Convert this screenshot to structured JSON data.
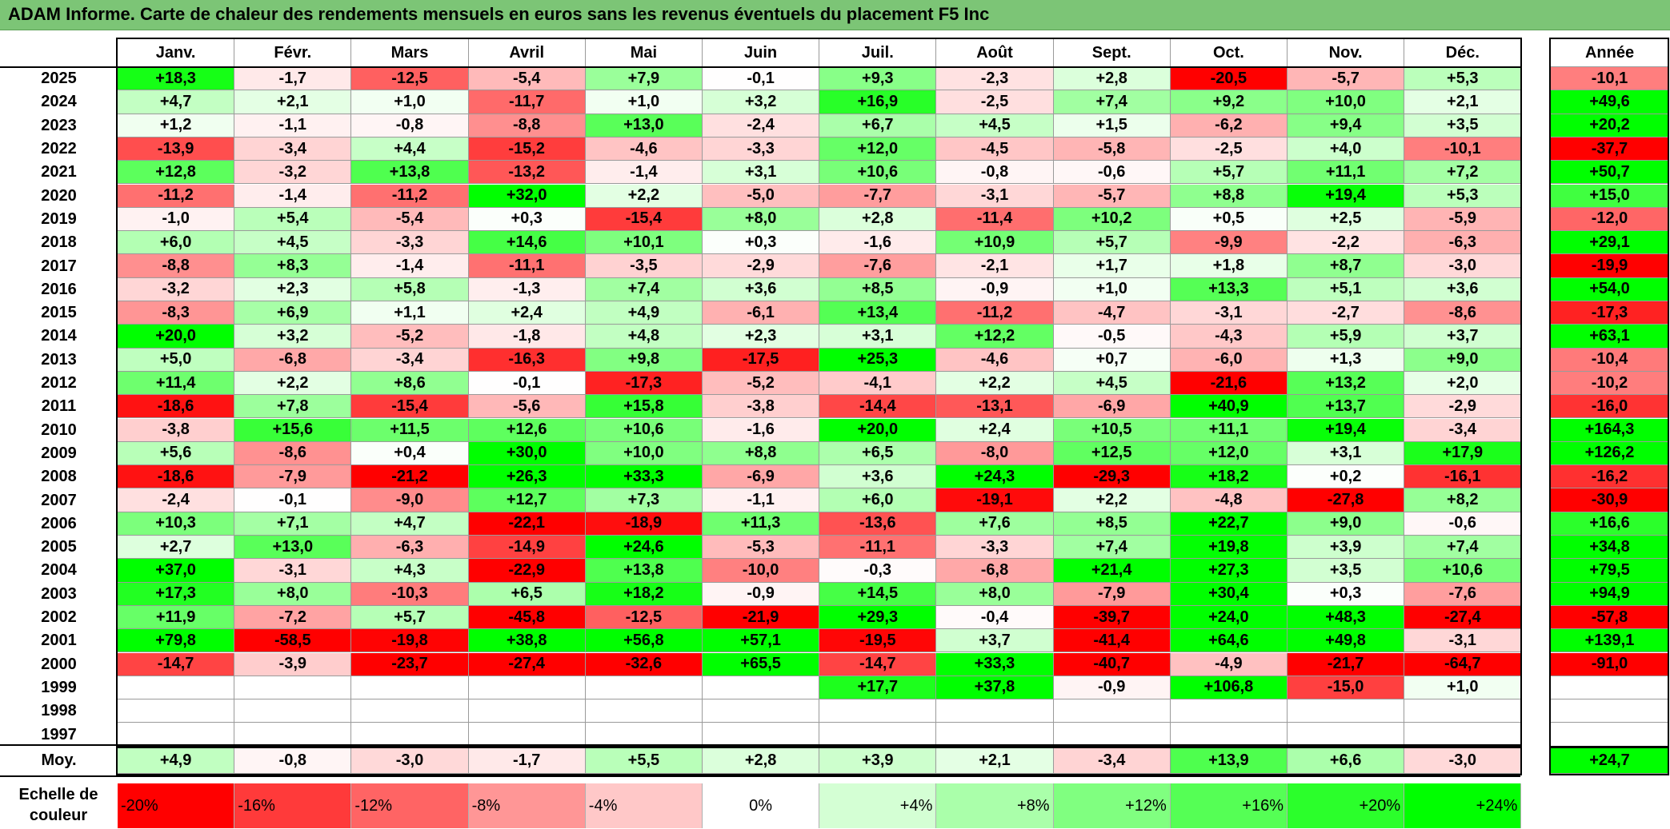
{
  "title": "ADAM Informe. Carte de chaleur des rendements mensuels en euros sans les revenus éventuels du placement F5 Inc",
  "chart_data": {
    "type": "heatmap",
    "columns": [
      "Janv.",
      "Févr.",
      "Mars",
      "Avril",
      "Mai",
      "Juin",
      "Juil.",
      "Août",
      "Sept.",
      "Oct.",
      "Nov.",
      "Déc."
    ],
    "annual_header": "Année",
    "rows": [
      {
        "year": "2025",
        "values": [
          "+18,3",
          "-1,7",
          "-12,5",
          "-5,4",
          "+7,9",
          "-0,1",
          "+9,3",
          "-2,3",
          "+2,8",
          "-20,5",
          "-5,7",
          "+5,3"
        ],
        "annual": "-10,1"
      },
      {
        "year": "2024",
        "values": [
          "+4,7",
          "+2,1",
          "+1,0",
          "-11,7",
          "+1,0",
          "+3,2",
          "+16,9",
          "-2,5",
          "+7,4",
          "+9,2",
          "+10,0",
          "+2,1"
        ],
        "annual": "+49,6"
      },
      {
        "year": "2023",
        "values": [
          "+1,2",
          "-1,1",
          "-0,8",
          "-8,8",
          "+13,0",
          "-2,4",
          "+6,7",
          "+4,5",
          "+1,5",
          "-6,2",
          "+9,4",
          "+3,5"
        ],
        "annual": "+20,2"
      },
      {
        "year": "2022",
        "values": [
          "-13,9",
          "-3,4",
          "+4,4",
          "-15,2",
          "-4,6",
          "-3,3",
          "+12,0",
          "-4,5",
          "-5,8",
          "-2,5",
          "+4,0",
          "-10,1"
        ],
        "annual": "-37,7"
      },
      {
        "year": "2021",
        "values": [
          "+12,8",
          "-3,2",
          "+13,8",
          "-13,2",
          "-1,4",
          "+3,1",
          "+10,6",
          "-0,8",
          "-0,6",
          "+5,7",
          "+11,1",
          "+7,2"
        ],
        "annual": "+50,7"
      },
      {
        "year": "2020",
        "values": [
          "-11,2",
          "-1,4",
          "-11,2",
          "+32,0",
          "+2,2",
          "-5,0",
          "-7,7",
          "-3,1",
          "-5,7",
          "+8,8",
          "+19,4",
          "+5,3"
        ],
        "annual": "+15,0"
      },
      {
        "year": "2019",
        "values": [
          "-1,0",
          "+5,4",
          "-5,4",
          "+0,3",
          "-15,4",
          "+8,0",
          "+2,8",
          "-11,4",
          "+10,2",
          "+0,5",
          "+2,5",
          "-5,9"
        ],
        "annual": "-12,0"
      },
      {
        "year": "2018",
        "values": [
          "+6,0",
          "+4,5",
          "-3,3",
          "+14,6",
          "+10,1",
          "+0,3",
          "-1,6",
          "+10,9",
          "+5,7",
          "-9,9",
          "-2,2",
          "-6,3"
        ],
        "annual": "+29,1"
      },
      {
        "year": "2017",
        "values": [
          "-8,8",
          "+8,3",
          "-1,4",
          "-11,1",
          "-3,5",
          "-2,9",
          "-7,6",
          "-2,1",
          "+1,7",
          "+1,8",
          "+8,7",
          "-3,0"
        ],
        "annual": "-19,9"
      },
      {
        "year": "2016",
        "values": [
          "-3,2",
          "+2,3",
          "+5,8",
          "-1,3",
          "+7,4",
          "+3,6",
          "+8,5",
          "-0,9",
          "+1,0",
          "+13,3",
          "+5,1",
          "+3,6"
        ],
        "annual": "+54,0"
      },
      {
        "year": "2015",
        "values": [
          "-8,3",
          "+6,9",
          "+1,1",
          "+2,4",
          "+4,9",
          "-6,1",
          "+13,4",
          "-11,2",
          "-4,7",
          "-3,1",
          "-2,7",
          "-8,6"
        ],
        "annual": "-17,3"
      },
      {
        "year": "2014",
        "values": [
          "+20,0",
          "+3,2",
          "-5,2",
          "-1,8",
          "+4,8",
          "+2,3",
          "+3,1",
          "+12,2",
          "-0,5",
          "-4,3",
          "+5,9",
          "+3,7"
        ],
        "annual": "+63,1"
      },
      {
        "year": "2013",
        "values": [
          "+5,0",
          "-6,8",
          "-3,4",
          "-16,3",
          "+9,8",
          "-17,5",
          "+25,3",
          "-4,6",
          "+0,7",
          "-6,0",
          "+1,3",
          "+9,0"
        ],
        "annual": "-10,4"
      },
      {
        "year": "2012",
        "values": [
          "+11,4",
          "+2,2",
          "+8,6",
          "-0,1",
          "-17,3",
          "-5,2",
          "-4,1",
          "+2,2",
          "+4,5",
          "-21,6",
          "+13,2",
          "+2,0"
        ],
        "annual": "-10,2"
      },
      {
        "year": "2011",
        "values": [
          "-18,6",
          "+7,8",
          "-15,4",
          "-5,6",
          "+15,8",
          "-3,8",
          "-14,4",
          "-13,1",
          "-6,9",
          "+40,9",
          "+13,7",
          "-2,9"
        ],
        "annual": "-16,0"
      },
      {
        "year": "2010",
        "values": [
          "-3,8",
          "+15,6",
          "+11,5",
          "+12,6",
          "+10,6",
          "-1,6",
          "+20,0",
          "+2,4",
          "+10,5",
          "+11,1",
          "+19,4",
          "-3,4"
        ],
        "annual": "+164,3"
      },
      {
        "year": "2009",
        "values": [
          "+5,6",
          "-8,6",
          "+0,4",
          "+30,0",
          "+10,0",
          "+8,8",
          "+6,5",
          "-8,0",
          "+12,5",
          "+12,0",
          "+3,1",
          "+17,9"
        ],
        "annual": "+126,2"
      },
      {
        "year": "2008",
        "values": [
          "-18,6",
          "-7,9",
          "-21,2",
          "+26,3",
          "+33,3",
          "-6,9",
          "+3,6",
          "+24,3",
          "-29,3",
          "+18,2",
          "+0,2",
          "-16,1"
        ],
        "annual": "-16,2"
      },
      {
        "year": "2007",
        "values": [
          "-2,4",
          "-0,1",
          "-9,0",
          "+12,7",
          "+7,3",
          "-1,1",
          "+6,0",
          "-19,1",
          "+2,2",
          "-4,8",
          "-27,8",
          "+8,2"
        ],
        "annual": "-30,9"
      },
      {
        "year": "2006",
        "values": [
          "+10,3",
          "+7,1",
          "+4,7",
          "-22,1",
          "-18,9",
          "+11,3",
          "-13,6",
          "+7,6",
          "+8,5",
          "+22,7",
          "+9,0",
          "-0,6"
        ],
        "annual": "+16,6"
      },
      {
        "year": "2005",
        "values": [
          "+2,7",
          "+13,0",
          "-6,3",
          "-14,9",
          "+24,6",
          "-5,3",
          "-11,1",
          "-3,3",
          "+7,4",
          "+19,8",
          "+3,9",
          "+7,4"
        ],
        "annual": "+34,8"
      },
      {
        "year": "2004",
        "values": [
          "+37,0",
          "-3,1",
          "+4,3",
          "-22,9",
          "+13,8",
          "-10,0",
          "-0,3",
          "-6,8",
          "+21,4",
          "+27,3",
          "+3,5",
          "+10,6"
        ],
        "annual": "+79,5"
      },
      {
        "year": "2003",
        "values": [
          "+17,3",
          "+8,0",
          "-10,3",
          "+6,5",
          "+18,2",
          "-0,9",
          "+14,5",
          "+8,0",
          "-7,9",
          "+30,4",
          "+0,3",
          "-7,6"
        ],
        "annual": "+94,9"
      },
      {
        "year": "2002",
        "values": [
          "+11,9",
          "-7,2",
          "+5,7",
          "-45,8",
          "-12,5",
          "-21,9",
          "+29,3",
          "-0,4",
          "-39,7",
          "+24,0",
          "+48,3",
          "-27,4"
        ],
        "annual": "-57,8"
      },
      {
        "year": "2001",
        "values": [
          "+79,8",
          "-58,5",
          "-19,8",
          "+38,8",
          "+56,8",
          "+57,1",
          "-19,5",
          "+3,7",
          "-41,4",
          "+64,6",
          "+49,8",
          "-3,1"
        ],
        "annual": "+139,1"
      },
      {
        "year": "2000",
        "values": [
          "-14,7",
          "-3,9",
          "-23,7",
          "-27,4",
          "-32,6",
          "+65,5",
          "-14,7",
          "+33,3",
          "-40,7",
          "-4,9",
          "-21,7",
          "-64,7"
        ],
        "annual": "-91,0"
      },
      {
        "year": "1999",
        "values": [
          "",
          "",
          "",
          "",
          "",
          "",
          "+17,7",
          "+37,8",
          "-0,9",
          "+106,8",
          "-15,0",
          "+1,0"
        ],
        "annual": ""
      },
      {
        "year": "1998",
        "values": [
          "",
          "",
          "",
          "",
          "",
          "",
          "",
          "",
          "",
          "",
          "",
          ""
        ],
        "annual": ""
      },
      {
        "year": "1997",
        "values": [
          "",
          "",
          "",
          "",
          "",
          "",
          "",
          "",
          "",
          "",
          "",
          ""
        ],
        "annual": ""
      }
    ],
    "average": {
      "label": "Moy.",
      "values": [
        "+4,9",
        "-0,8",
        "-3,0",
        "-1,7",
        "+5,5",
        "+2,8",
        "+3,9",
        "+2,1",
        "-3,4",
        "+13,9",
        "+6,6",
        "-3,0"
      ],
      "annual": "+24,7"
    },
    "scale": {
      "label": "Echelle de\ncouleur",
      "steps": [
        "-20%",
        "-16%",
        "-12%",
        "-8%",
        "-4%",
        "0%",
        "+4%",
        "+8%",
        "+12%",
        "+16%",
        "+20%",
        "+24%"
      ],
      "colors": [
        "#ff0000",
        "#ff3a3a",
        "#ff6464",
        "#ff9696",
        "#ffc8c8",
        "#ffffff",
        "#d4ffd4",
        "#aaffaa",
        "#80ff80",
        "#55ff55",
        "#2bff2b",
        "#00ff00"
      ]
    },
    "color_range": {
      "negative": "#ff0000",
      "zero": "#ffffff",
      "positive": "#00ff00",
      "saturation_at": 20
    }
  }
}
